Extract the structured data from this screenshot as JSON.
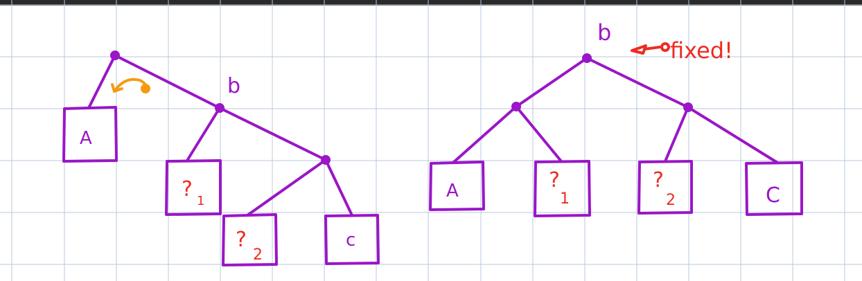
{
  "colors": {
    "tree": "#9a16c6",
    "unknown": "#ee2b22",
    "note": "#ee2b22",
    "arrow": "#f59b12",
    "grid": "#b9c8dc"
  },
  "before": {
    "node_label": "b",
    "leaves": [
      "A",
      "?",
      "?",
      "c"
    ],
    "unknown_subscripts": [
      "1",
      "2"
    ],
    "rotation_icon": "rotate-arrow-icon"
  },
  "after": {
    "root_label": "b",
    "leaves": [
      "A",
      "?",
      "?",
      "C"
    ],
    "unknown_subscripts": [
      "1",
      "2"
    ],
    "note": "fixed!",
    "pointer_icon": "pointer-arrow-icon"
  }
}
